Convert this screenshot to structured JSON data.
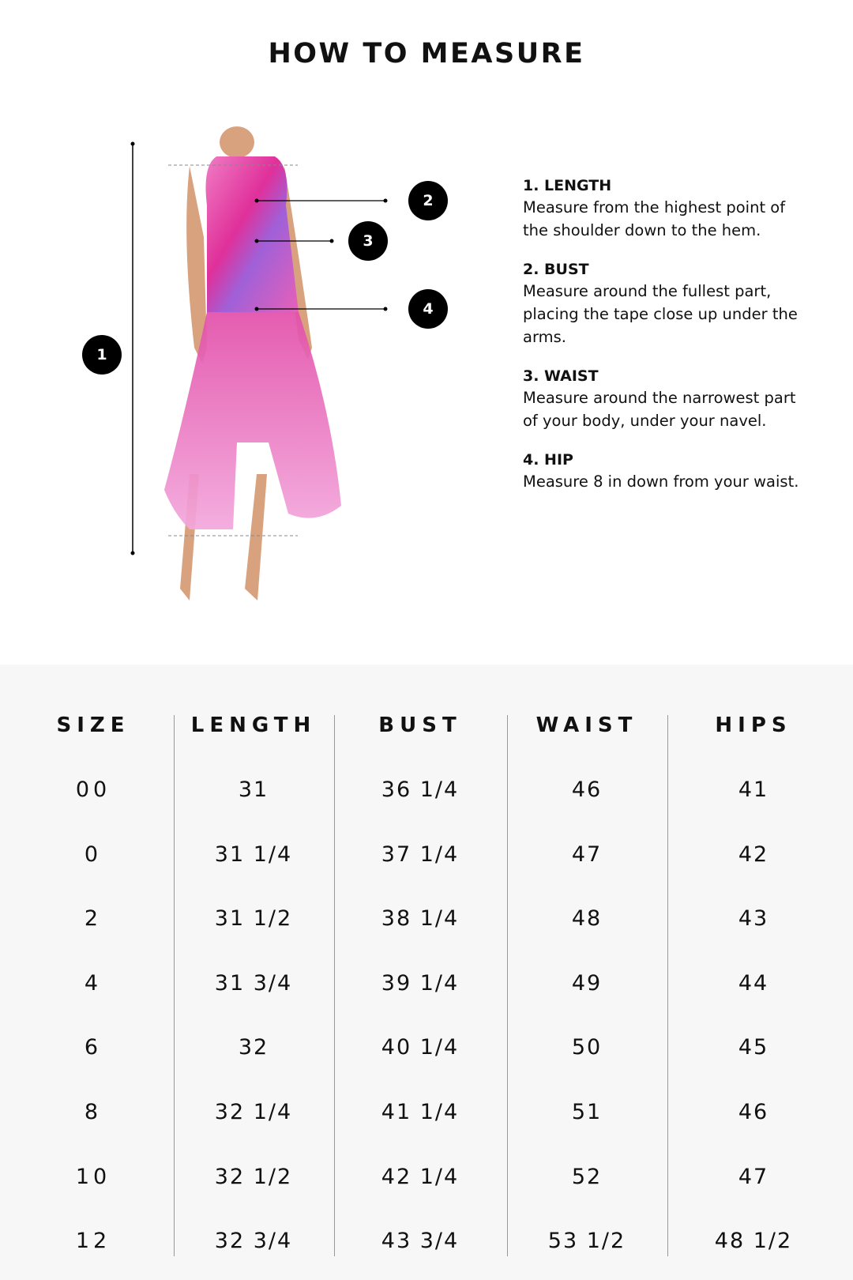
{
  "title": "HOW TO MEASURE",
  "diagram": {
    "markers": [
      "1",
      "2",
      "3",
      "4"
    ]
  },
  "instructions": [
    {
      "heading": "1. LENGTH",
      "text": "Measure from the highest point of the shoulder down to the hem."
    },
    {
      "heading": "2. BUST",
      "text": "Measure around the fullest part, placing the tape close up under the arms."
    },
    {
      "heading": "3. WAIST",
      "text": "Measure around the narrowest part of your body, under your navel."
    },
    {
      "heading": "4. HIP",
      "text": "Measure 8 in down from your waist."
    }
  ],
  "size_table": {
    "headers": [
      "SIZE",
      "LENGTH",
      "BUST",
      "WAIST",
      "HIPS"
    ],
    "rows": [
      [
        "00",
        "31",
        "36 1/4",
        "46",
        "41"
      ],
      [
        "0",
        "31 1/4",
        "37 1/4",
        "47",
        "42"
      ],
      [
        "2",
        "31 1/2",
        "38 1/4",
        "48",
        "43"
      ],
      [
        "4",
        "31 3/4",
        "39 1/4",
        "49",
        "44"
      ],
      [
        "6",
        "32",
        "40 1/4",
        "50",
        "45"
      ],
      [
        "8",
        "32 1/4",
        "41 1/4",
        "51",
        "46"
      ],
      [
        "10",
        "32 1/2",
        "42 1/4",
        "52",
        "47"
      ],
      [
        "12",
        "32 3/4",
        "43 3/4",
        "53 1/2",
        "48 1/2"
      ]
    ]
  },
  "colors": {
    "dress_pink": "#e0309a",
    "dress_purple": "#8a5cd6",
    "table_bg": "#f7f7f7"
  }
}
